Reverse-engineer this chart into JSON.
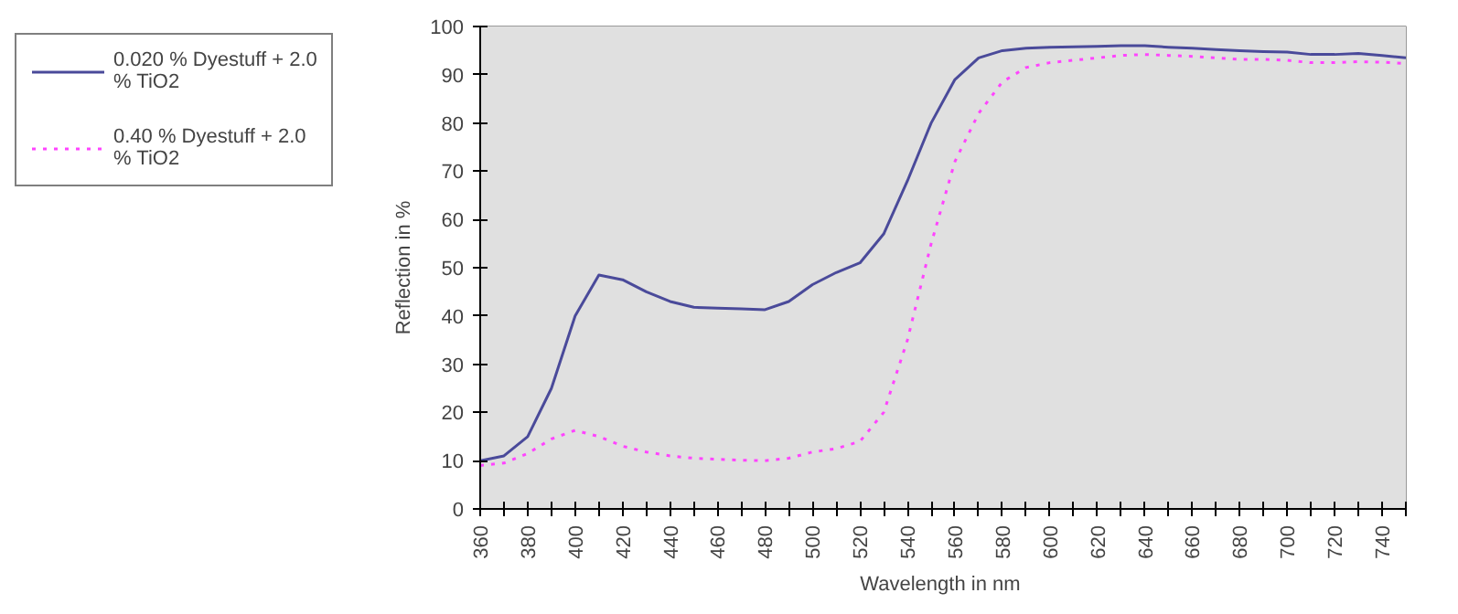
{
  "chart_data": {
    "type": "line",
    "xlabel": "Wavelength  in nm",
    "ylabel": "Reflection in %",
    "x": [
      360,
      370,
      380,
      390,
      400,
      410,
      420,
      430,
      440,
      450,
      460,
      470,
      480,
      490,
      500,
      510,
      520,
      530,
      540,
      550,
      560,
      570,
      580,
      590,
      600,
      610,
      620,
      630,
      640,
      650,
      660,
      670,
      680,
      690,
      700,
      710,
      720,
      730,
      740,
      750
    ],
    "series": [
      {
        "name": "0.020 % Dyestuff + 2.0 % TiO2",
        "color": "#4a4a9a",
        "line_style": "solid",
        "values": [
          10,
          11,
          15,
          25,
          40,
          48.5,
          47.5,
          45,
          43,
          41.8,
          41.6,
          41.5,
          41.3,
          43,
          46.5,
          49,
          51,
          57,
          68,
          80,
          89,
          93.5,
          95,
          95.5,
          95.7,
          95.8,
          95.9,
          96,
          96,
          95.7,
          95.5,
          95.2,
          95,
          94.8,
          94.7,
          94.2,
          94.2,
          94.4,
          94,
          93.5
        ]
      },
      {
        "name": "0.40 % Dyestuff + 2.0 % TiO2",
        "color": "#ff44ff",
        "line_style": "dotted",
        "values": [
          9,
          9.5,
          11.5,
          14.5,
          16.3,
          15,
          13,
          11.8,
          11,
          10.5,
          10.3,
          10.1,
          10,
          10.5,
          11.8,
          12.5,
          14,
          20,
          35,
          55,
          72,
          82,
          88.5,
          91.5,
          92.5,
          93,
          93.5,
          94,
          94.2,
          94,
          93.8,
          93.5,
          93.2,
          93.2,
          93,
          92.5,
          92.5,
          92.7,
          92.6,
          92.3
        ]
      }
    ],
    "xlim": [
      360,
      750
    ],
    "xticks": [
      360,
      {
        "value": 370,
        "label": null
      },
      380,
      {
        "value": 390,
        "label": null
      },
      400,
      {
        "value": 410,
        "label": null
      },
      420,
      {
        "value": 430,
        "label": null
      },
      440,
      {
        "value": 450,
        "label": null
      },
      460,
      {
        "value": 470,
        "label": null
      },
      480,
      {
        "value": 490,
        "label": null
      },
      500,
      {
        "value": 510,
        "label": null
      },
      520,
      {
        "value": 530,
        "label": null
      },
      540,
      {
        "value": 550,
        "label": null
      },
      560,
      {
        "value": 570,
        "label": null
      },
      580,
      {
        "value": 590,
        "label": null
      },
      600,
      {
        "value": 610,
        "label": null
      },
      620,
      {
        "value": 630,
        "label": null
      },
      640,
      {
        "value": 650,
        "label": null
      },
      660,
      {
        "value": 670,
        "label": null
      },
      680,
      {
        "value": 690,
        "label": null
      },
      700,
      {
        "value": 710,
        "label": null
      },
      720,
      {
        "value": 730,
        "label": null
      },
      740,
      {
        "value": 750,
        "label": null
      }
    ],
    "ylim": [
      0,
      100
    ],
    "yticks": [
      0,
      10,
      20,
      30,
      40,
      50,
      60,
      70,
      80,
      90,
      100
    ],
    "legend": "top left"
  }
}
